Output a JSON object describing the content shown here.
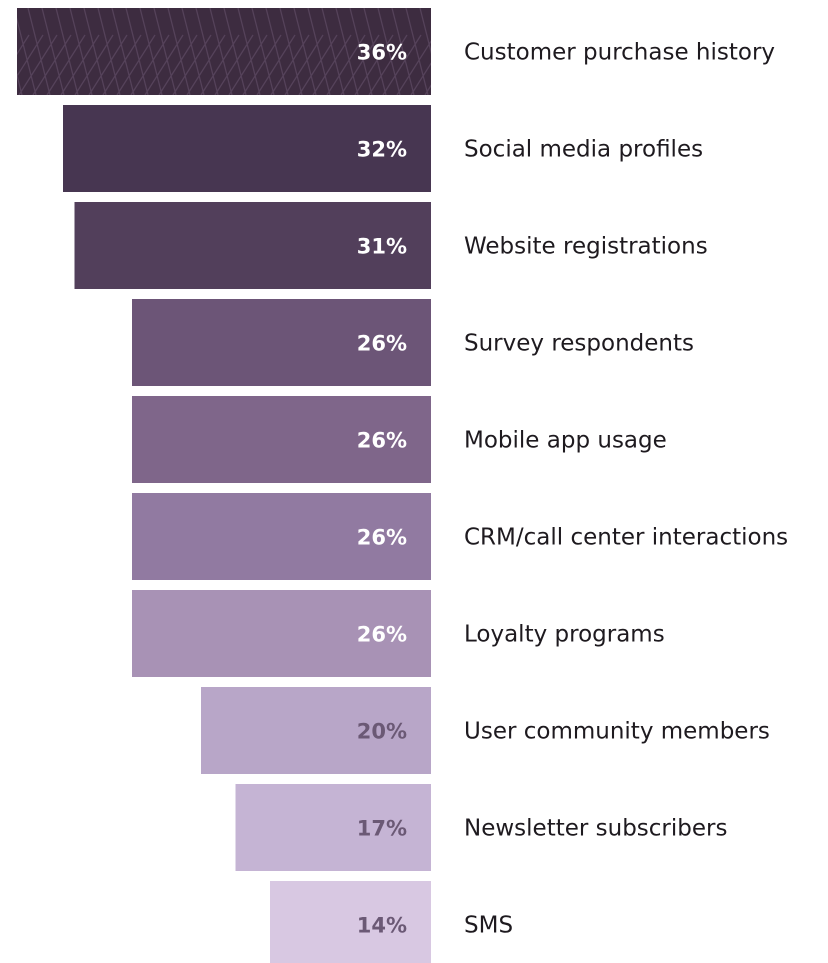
{
  "chart_data": {
    "type": "bar",
    "orientation": "horizontal",
    "alignment": "right",
    "categories": [
      "Customer purchase history",
      "Social media profiles",
      "Website registrations",
      "Survey respondents",
      "Mobile app usage",
      "CRM/call center interactions",
      "Loyalty programs",
      "User community members",
      "Newsletter subscribers",
      "SMS"
    ],
    "values": [
      36,
      32,
      31,
      26,
      26,
      26,
      26,
      20,
      17,
      14
    ],
    "value_labels": [
      "36%",
      "32%",
      "31%",
      "26%",
      "26%",
      "26%",
      "26%",
      "20%",
      "17%",
      "14%"
    ],
    "bar_colors": [
      "#3d2c40",
      "#473651",
      "#523f5b",
      "#6c5577",
      "#7f668a",
      "#917aa1",
      "#a892b5",
      "#b8a6c8",
      "#c5b4d4",
      "#d8c8e2"
    ],
    "label_colors": [
      "#ffffff",
      "#ffffff",
      "#ffffff",
      "#ffffff",
      "#ffffff",
      "#ffffff",
      "#ffffff",
      "#6b5975",
      "#6b5975",
      "#6b5975"
    ],
    "title": "",
    "xlabel": "",
    "ylabel": "",
    "grid": false,
    "legend": "none"
  }
}
